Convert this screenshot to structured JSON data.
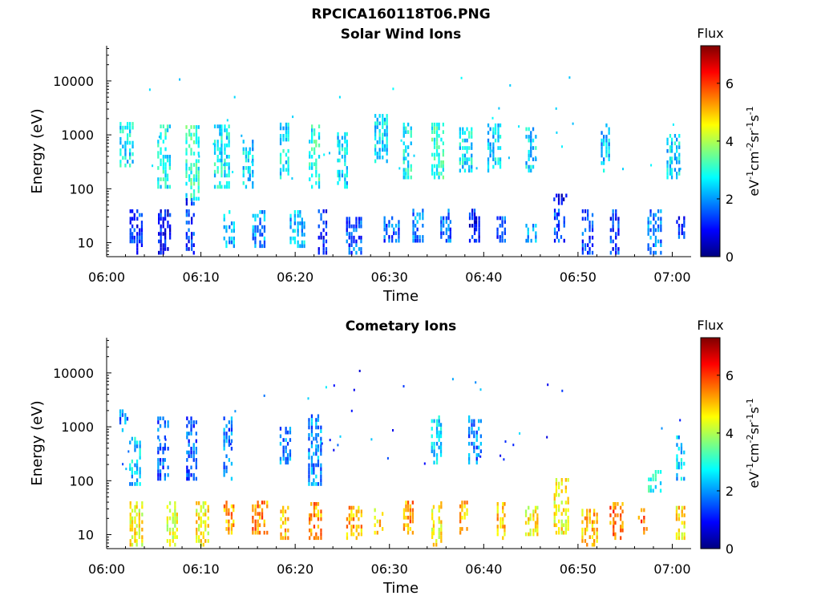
{
  "figure": {
    "title": "RPCICA160118T06.PNG"
  },
  "colormap": [
    "#00007f",
    "#0000ff",
    "#007fff",
    "#00ffff",
    "#7fff7f",
    "#ffff00",
    "#ff7f00",
    "#ff0000",
    "#7f0000"
  ],
  "chart_data": [
    {
      "type": "heatmap",
      "title": "Solar Wind Ions",
      "xlabel": "Time",
      "ylabel": "Energy (eV)",
      "x_range": [
        "06:00",
        "07:02"
      ],
      "x_ticks": [
        "06:00",
        "06:10",
        "06:20",
        "06:30",
        "06:40",
        "06:50",
        "07:00"
      ],
      "y_scale": "log",
      "y_range": [
        5.5,
        45000
      ],
      "y_ticks": [
        10,
        100,
        1000,
        10000
      ],
      "y_tick_labels": [
        "10",
        "100",
        "1000",
        "10000"
      ],
      "colorbar": {
        "title": "Flux",
        "label": "eV-1cm-2sr-1s-1",
        "range": [
          0,
          7.3
        ],
        "ticks": [
          0,
          2,
          4,
          6
        ]
      },
      "grid": false,
      "bursts": [
        {
          "t": "06:02",
          "e_min": 250,
          "e_max": 1500,
          "level": 2.6
        },
        {
          "t": "06:03",
          "e_min": 6,
          "e_max": 40,
          "level": 1.2
        },
        {
          "t": "06:06",
          "e_min": 100,
          "e_max": 1500,
          "level": 2.8
        },
        {
          "t": "06:06",
          "e_min": 6,
          "e_max": 40,
          "level": 1.0
        },
        {
          "t": "06:09",
          "e_min": 60,
          "e_max": 1500,
          "level": 3.0
        },
        {
          "t": "06:09",
          "e_min": 6,
          "e_max": 60,
          "level": 1.3
        },
        {
          "t": "06:12",
          "e_min": 100,
          "e_max": 1500,
          "level": 2.7
        },
        {
          "t": "06:13",
          "e_min": 8,
          "e_max": 40,
          "level": 2.2
        },
        {
          "t": "06:15",
          "e_min": 100,
          "e_max": 800,
          "level": 2.5
        },
        {
          "t": "06:16",
          "e_min": 8,
          "e_max": 40,
          "level": 2.0
        },
        {
          "t": "06:19",
          "e_min": 150,
          "e_max": 1500,
          "level": 2.6
        },
        {
          "t": "06:20",
          "e_min": 8,
          "e_max": 40,
          "level": 2.3
        },
        {
          "t": "06:22",
          "e_min": 100,
          "e_max": 1500,
          "level": 2.9
        },
        {
          "t": "06:23",
          "e_min": 6,
          "e_max": 40,
          "level": 1.2
        },
        {
          "t": "06:25",
          "e_min": 100,
          "e_max": 1000,
          "level": 2.5
        },
        {
          "t": "06:26",
          "e_min": 6,
          "e_max": 30,
          "level": 1.5
        },
        {
          "t": "06:29",
          "e_min": 300,
          "e_max": 2200,
          "level": 2.6
        },
        {
          "t": "06:30",
          "e_min": 10,
          "e_max": 30,
          "level": 1.5
        },
        {
          "t": "06:32",
          "e_min": 150,
          "e_max": 1500,
          "level": 2.8
        },
        {
          "t": "06:33",
          "e_min": 10,
          "e_max": 40,
          "level": 1.8
        },
        {
          "t": "06:35",
          "e_min": 150,
          "e_max": 1500,
          "level": 3.0
        },
        {
          "t": "06:36",
          "e_min": 10,
          "e_max": 40,
          "level": 1.6
        },
        {
          "t": "06:38",
          "e_min": 200,
          "e_max": 1300,
          "level": 2.6
        },
        {
          "t": "06:39",
          "e_min": 10,
          "e_max": 40,
          "level": 1.0
        },
        {
          "t": "06:41",
          "e_min": 200,
          "e_max": 1500,
          "level": 2.5
        },
        {
          "t": "06:42",
          "e_min": 10,
          "e_max": 30,
          "level": 1.5
        },
        {
          "t": "06:45",
          "e_min": 200,
          "e_max": 1200,
          "level": 2.5
        },
        {
          "t": "06:45",
          "e_min": 10,
          "e_max": 20,
          "level": 2.0
        },
        {
          "t": "06:48",
          "e_min": 10,
          "e_max": 40,
          "level": 1.5
        },
        {
          "t": "06:48",
          "e_min": 50,
          "e_max": 80,
          "level": 0.6
        },
        {
          "t": "06:51",
          "e_min": 6,
          "e_max": 40,
          "level": 1.3
        },
        {
          "t": "06:53",
          "e_min": 200,
          "e_max": 1500,
          "level": 2.3
        },
        {
          "t": "06:54",
          "e_min": 6,
          "e_max": 40,
          "level": 1.3
        },
        {
          "t": "06:58",
          "e_min": 6,
          "e_max": 40,
          "level": 1.8
        },
        {
          "t": "07:00",
          "e_min": 150,
          "e_max": 1000,
          "level": 2.5
        },
        {
          "t": "07:01",
          "e_min": 10,
          "e_max": 30,
          "level": 1.3
        }
      ]
    },
    {
      "type": "heatmap",
      "title": "Cometary Ions",
      "xlabel": "Time",
      "ylabel": "Energy (eV)",
      "x_range": [
        "06:00",
        "07:02"
      ],
      "x_ticks": [
        "06:00",
        "06:10",
        "06:20",
        "06:30",
        "06:40",
        "06:50",
        "07:00"
      ],
      "y_scale": "log",
      "y_range": [
        5.5,
        45000
      ],
      "y_ticks": [
        10,
        100,
        1000,
        10000
      ],
      "y_tick_labels": [
        "10",
        "100",
        "1000",
        "10000"
      ],
      "colorbar": {
        "title": "Flux",
        "label": "eV-1cm-2sr-1s-1",
        "range": [
          0,
          7.3
        ],
        "ticks": [
          0,
          2,
          4,
          6
        ]
      },
      "grid": false,
      "bursts": [
        {
          "t": "06:02",
          "e_min": 800,
          "e_max": 2000,
          "level": 1.8
        },
        {
          "t": "06:03",
          "e_min": 6,
          "e_max": 40,
          "level": 4.6
        },
        {
          "t": "06:03",
          "e_min": 80,
          "e_max": 600,
          "level": 2.4
        },
        {
          "t": "06:06",
          "e_min": 100,
          "e_max": 1500,
          "level": 1.6
        },
        {
          "t": "06:07",
          "e_min": 6,
          "e_max": 40,
          "level": 4.4
        },
        {
          "t": "06:09",
          "e_min": 100,
          "e_max": 1500,
          "level": 1.6
        },
        {
          "t": "06:10",
          "e_min": 6,
          "e_max": 40,
          "level": 4.6
        },
        {
          "t": "06:13",
          "e_min": 10,
          "e_max": 40,
          "level": 5.2
        },
        {
          "t": "06:13",
          "e_min": 100,
          "e_max": 1500,
          "level": 1.8
        },
        {
          "t": "06:16",
          "e_min": 10,
          "e_max": 40,
          "level": 5.4
        },
        {
          "t": "06:19",
          "e_min": 8,
          "e_max": 30,
          "level": 5.0
        },
        {
          "t": "06:19",
          "e_min": 200,
          "e_max": 1000,
          "level": 1.8
        },
        {
          "t": "06:22",
          "e_min": 8,
          "e_max": 40,
          "level": 5.3
        },
        {
          "t": "06:22",
          "e_min": 80,
          "e_max": 1500,
          "level": 1.9
        },
        {
          "t": "06:26",
          "e_min": 8,
          "e_max": 30,
          "level": 5.1
        },
        {
          "t": "06:29",
          "e_min": 10,
          "e_max": 30,
          "level": 4.8
        },
        {
          "t": "06:32",
          "e_min": 10,
          "e_max": 40,
          "level": 5.3
        },
        {
          "t": "06:35",
          "e_min": 6,
          "e_max": 40,
          "level": 4.6
        },
        {
          "t": "06:35",
          "e_min": 200,
          "e_max": 1500,
          "level": 2.4
        },
        {
          "t": "06:38",
          "e_min": 10,
          "e_max": 40,
          "level": 5.0
        },
        {
          "t": "06:39",
          "e_min": 200,
          "e_max": 1500,
          "level": 1.8
        },
        {
          "t": "06:42",
          "e_min": 8,
          "e_max": 40,
          "level": 5.0
        },
        {
          "t": "06:45",
          "e_min": 8,
          "e_max": 30,
          "level": 4.6
        },
        {
          "t": "06:48",
          "e_min": 10,
          "e_max": 100,
          "level": 4.6
        },
        {
          "t": "06:51",
          "e_min": 6,
          "e_max": 30,
          "level": 5.0
        },
        {
          "t": "06:54",
          "e_min": 8,
          "e_max": 40,
          "level": 5.6
        },
        {
          "t": "06:57",
          "e_min": 10,
          "e_max": 40,
          "level": 5.6
        },
        {
          "t": "06:58",
          "e_min": 60,
          "e_max": 150,
          "level": 3.0
        },
        {
          "t": "07:01",
          "e_min": 8,
          "e_max": 30,
          "level": 4.8
        },
        {
          "t": "07:01",
          "e_min": 100,
          "e_max": 600,
          "level": 2.4
        }
      ]
    }
  ]
}
